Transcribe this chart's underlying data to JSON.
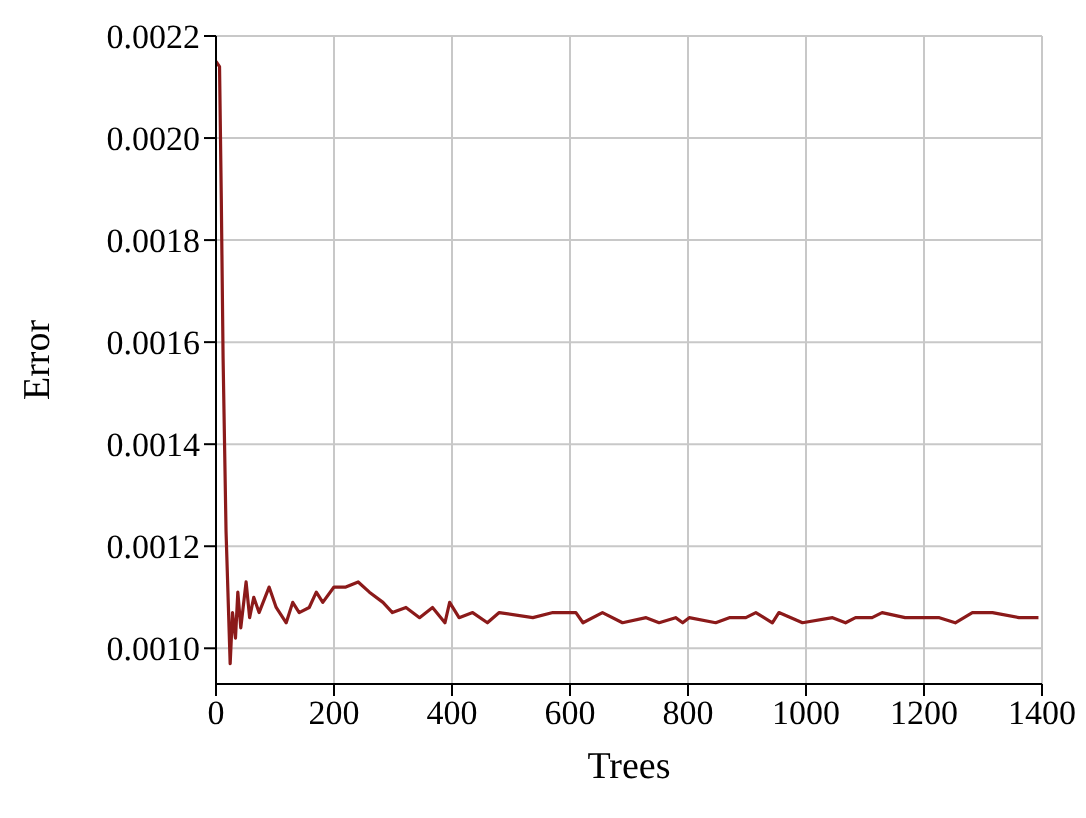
{
  "chart_data": {
    "type": "line",
    "xlabel": "Trees",
    "ylabel": "Error",
    "x": [
      0,
      6,
      9,
      12,
      17,
      24,
      28,
      33,
      37,
      42,
      51,
      57,
      64,
      73,
      90,
      102,
      119,
      130,
      141,
      158,
      170,
      181,
      200,
      220,
      241,
      260,
      283,
      299,
      322,
      345,
      367,
      388,
      396,
      412,
      435,
      460,
      480,
      537,
      571,
      582,
      605,
      610,
      622,
      655,
      689,
      729,
      751,
      779,
      791,
      802,
      847,
      870,
      898,
      915,
      943,
      954,
      994,
      1045,
      1067,
      1084,
      1112,
      1129,
      1168,
      1203,
      1226,
      1253,
      1282,
      1316,
      1361,
      1394
    ],
    "series": [
      {
        "color": "#8b1a1a",
        "values": [
          0.00215,
          0.00214,
          0.00188,
          0.00157,
          0.00123,
          0.00097,
          0.00107,
          0.00102,
          0.00111,
          0.00104,
          0.00113,
          0.00106,
          0.0011,
          0.00107,
          0.00112,
          0.00108,
          0.00105,
          0.00109,
          0.00107,
          0.00108,
          0.00111,
          0.00109,
          0.00112,
          0.00112,
          0.00113,
          0.00111,
          0.00109,
          0.00107,
          0.00108,
          0.00106,
          0.00108,
          0.00105,
          0.00109,
          0.00106,
          0.00107,
          0.00105,
          0.00107,
          0.00106,
          0.00107,
          0.00107,
          0.00107,
          0.00107,
          0.00105,
          0.00107,
          0.00105,
          0.00106,
          0.00105,
          0.00106,
          0.00105,
          0.00106,
          0.00105,
          0.00106,
          0.00106,
          0.00107,
          0.00105,
          0.00107,
          0.00105,
          0.00106,
          0.00105,
          0.00106,
          0.00106,
          0.00107,
          0.00106,
          0.00106,
          0.00106,
          0.00105,
          0.00107,
          0.00107,
          0.00106,
          0.00106
        ]
      }
    ],
    "xlim": [
      0,
      1400
    ],
    "xticks": [
      0,
      200,
      400,
      600,
      800,
      1000,
      1200,
      1400
    ],
    "ylim": [
      0.00093,
      0.0022
    ],
    "yticks": [
      {
        "value": 0.001,
        "label": "0.0010"
      },
      {
        "value": 0.0012,
        "label": "0.0012"
      },
      {
        "value": 0.0014,
        "label": "0.0014"
      },
      {
        "value": 0.0016,
        "label": "0.0016"
      },
      {
        "value": 0.0018,
        "label": "0.0018"
      },
      {
        "value": 0.002,
        "label": "0.0020"
      },
      {
        "value": 0.0022,
        "label": "0.0022"
      }
    ],
    "grid": true,
    "legend": false,
    "marker": "none",
    "line_style": "solid"
  }
}
